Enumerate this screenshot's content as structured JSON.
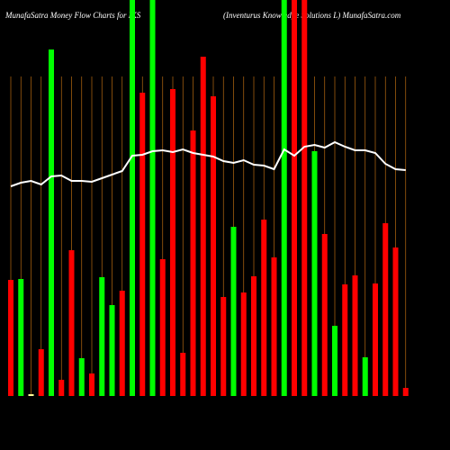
{
  "chart_data": {
    "type": "bar",
    "title": "MunafaSatra  Money Flow  Charts for IKS",
    "subtitle": "(Inventurus Knowledge Solutions L) MunafaSatra.com",
    "categories": [
      null,
      null,
      null,
      null,
      null,
      null,
      null,
      null,
      null,
      null,
      null,
      null,
      null,
      null,
      null,
      null,
      null,
      null,
      null,
      null,
      null,
      null,
      null,
      null,
      null,
      null,
      null,
      null,
      null,
      null,
      null,
      null,
      null,
      null,
      null,
      null,
      null,
      null,
      null,
      null
    ],
    "values": [
      129,
      130,
      2,
      52,
      385,
      18,
      162,
      42,
      25,
      132,
      101,
      117,
      440,
      337,
      440,
      152,
      341,
      48,
      295,
      377,
      333,
      110,
      188,
      115,
      133,
      196,
      154,
      440,
      440,
      440,
      272,
      180,
      78,
      124,
      134,
      43,
      125,
      192,
      165,
      9
    ],
    "colors": [
      "#ff0000",
      "#00ff00",
      "#ffff99",
      "#ff0000",
      "#00ff00",
      "#ff0000",
      "#ff0000",
      "#00ff00",
      "#ff0000",
      "#00ff00",
      "#00ff00",
      "#ff0000",
      "#00ff00",
      "#ff0000",
      "#00ff00",
      "#ff0000",
      "#ff0000",
      "#ff0000",
      "#ff0000",
      "#ff0000",
      "#ff0000",
      "#ff0000",
      "#00ff00",
      "#ff0000",
      "#ff0000",
      "#ff0000",
      "#ff0000",
      "#00ff00",
      "#ff0000",
      "#ff0000",
      "#00ff00",
      "#ff0000",
      "#00ff00",
      "#ff0000",
      "#ff0000",
      "#00ff00",
      "#ff0000",
      "#ff0000",
      "#ff0000",
      "#ff0000"
    ],
    "line": {
      "color": "#ffffff",
      "values": [
        233,
        237,
        239,
        235,
        244,
        245,
        239,
        239,
        238,
        242,
        246,
        250,
        267,
        268,
        272,
        273,
        271,
        274,
        270,
        268,
        266,
        261,
        259,
        262,
        257,
        256,
        252,
        274,
        267,
        277,
        279,
        276,
        282,
        277,
        273,
        273,
        270,
        258,
        252,
        251
      ]
    },
    "ylim": [
      0,
      440
    ],
    "grid_color": "#b86a10"
  }
}
